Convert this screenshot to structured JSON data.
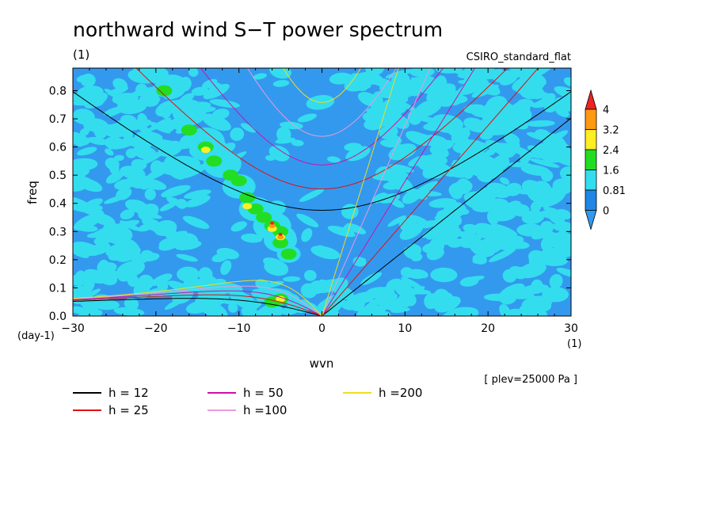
{
  "chart_data": {
    "type": "heatmap",
    "title": "northward wind S−T power spectrum",
    "units_label": "(1)",
    "model": "CSIRO_standard_flat",
    "xlabel": "wvn",
    "ylabel": "freq",
    "x_unit_label": "(1)",
    "y_unit_label": "(day-1)",
    "level_note": "[ plev=25000 Pa ]",
    "xlim": [
      -30,
      30
    ],
    "ylim": [
      0,
      0.88
    ],
    "x_ticks": [
      -30,
      -20,
      -10,
      0,
      10,
      20,
      30
    ],
    "y_ticks": [
      0.0,
      0.1,
      0.2,
      0.3,
      0.4,
      0.5,
      0.6,
      0.7,
      0.8
    ],
    "colorbar": {
      "levels": [
        "0",
        "0.81",
        "1.6",
        "2.4",
        "3.2",
        "4"
      ],
      "colors": [
        "#3399ee",
        "#1f86e6",
        "#33ddee",
        "#22dd22",
        "#ffee22",
        "#ff9911",
        "#ee2222"
      ]
    },
    "contour_colors": {
      "low": "#3399ee",
      "mid": "#33ddee",
      "high1": "#22dd22",
      "high2": "#ffee22",
      "high3": "#ff9911",
      "high4": "#ee2222"
    },
    "dispersion_curves": [
      {
        "name": "h = 12",
        "h": 12,
        "color": "#000000"
      },
      {
        "name": "h = 25",
        "h": 25,
        "color": "#dd1111"
      },
      {
        "name": "h = 50",
        "h": 50,
        "color": "#cc11aa"
      },
      {
        "name": "h =100",
        "h": 100,
        "color": "#ee99dd"
      },
      {
        "name": "h =200",
        "h": 200,
        "color": "#eedd22"
      }
    ]
  }
}
